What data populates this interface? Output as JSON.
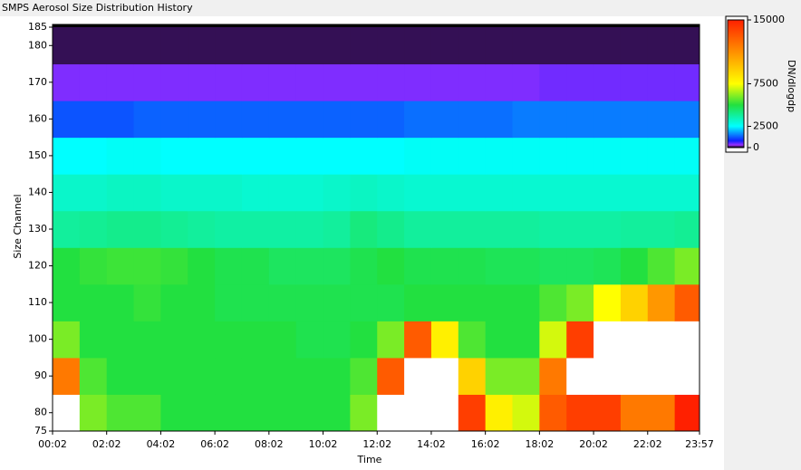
{
  "chart_data": {
    "type": "heatmap",
    "title": "SMPS Aerosol Size Distribution History",
    "x_label": "Time",
    "y_label": "Size Channel",
    "colorbar_label": "DN/dlogdp",
    "x_bins": [
      2,
      62,
      122,
      182,
      242,
      302,
      362,
      422,
      482,
      542,
      602,
      662,
      722,
      782,
      842,
      902,
      962,
      1022,
      1082,
      1142,
      1202,
      1262,
      1322,
      1382,
      1437
    ],
    "y_bins": [
      75,
      85,
      95,
      105,
      115,
      125,
      135,
      145,
      155,
      165,
      175,
      185
    ],
    "z": [
      [
        16000,
        6000,
        5500,
        5500,
        5000,
        5000,
        5000,
        5000,
        5000,
        5000,
        5000,
        6000,
        16000,
        16000,
        16000,
        14000,
        8000,
        7000,
        13000,
        14000,
        14000,
        12000,
        12000,
        15000
      ],
      [
        12000,
        5500,
        5000,
        5000,
        5000,
        5000,
        5000,
        5000,
        5000,
        5000,
        5000,
        5500,
        13000,
        16000,
        16000,
        9000,
        6000,
        6000,
        12000,
        16000,
        16000,
        16000,
        16000,
        16000
      ],
      [
        6000,
        5000,
        5000,
        5000,
        5000,
        5000,
        5000,
        5000,
        5000,
        4800,
        4800,
        5000,
        6000,
        13000,
        8000,
        5500,
        5000,
        5000,
        7000,
        14000,
        16000,
        16000,
        16000,
        16000
      ],
      [
        5000,
        5000,
        5000,
        5200,
        5000,
        5000,
        4800,
        4800,
        4800,
        4800,
        4800,
        4800,
        4800,
        5000,
        5000,
        5000,
        5000,
        5000,
        5500,
        6000,
        7500,
        9000,
        11000,
        13000
      ],
      [
        5000,
        5200,
        5300,
        5300,
        5200,
        5000,
        4800,
        4800,
        4600,
        4600,
        4600,
        4800,
        5000,
        4800,
        4800,
        4800,
        4700,
        4700,
        4600,
        4600,
        4700,
        5000,
        5500,
        6000
      ],
      [
        3800,
        3900,
        4000,
        4000,
        3900,
        3800,
        3700,
        3700,
        3700,
        3700,
        3800,
        4200,
        4000,
        3800,
        3800,
        3800,
        3800,
        3800,
        3700,
        3700,
        3700,
        3800,
        3800,
        3900
      ],
      [
        3200,
        3200,
        3300,
        3300,
        3200,
        3200,
        3200,
        3100,
        3100,
        3100,
        3200,
        3300,
        3200,
        3100,
        3100,
        3100,
        3100,
        3100,
        3100,
        3100,
        3100,
        3100,
        3100,
        3100
      ],
      [
        2500,
        2500,
        2600,
        2600,
        2500,
        2500,
        2500,
        2500,
        2500,
        2500,
        2500,
        2500,
        2500,
        2600,
        2600,
        2600,
        2600,
        2600,
        2600,
        2600,
        2600,
        2600,
        2600,
        2600
      ],
      [
        1200,
        1200,
        1200,
        1300,
        1300,
        1300,
        1300,
        1300,
        1300,
        1300,
        1300,
        1300,
        1300,
        1400,
        1400,
        1400,
        1400,
        1500,
        1500,
        1500,
        1500,
        1500,
        1500,
        1500
      ],
      [
        400,
        400,
        400,
        400,
        400,
        400,
        400,
        400,
        400,
        400,
        400,
        400,
        400,
        400,
        400,
        400,
        400,
        400,
        450,
        450,
        450,
        450,
        450,
        450
      ],
      [
        100,
        100,
        100,
        100,
        100,
        100,
        100,
        100,
        100,
        100,
        100,
        100,
        100,
        100,
        100,
        100,
        100,
        100,
        100,
        100,
        100,
        100,
        100,
        100
      ]
    ],
    "xlim": [
      2,
      1437
    ],
    "ylim": [
      75,
      185
    ],
    "xticks": [
      {
        "value": 2,
        "label": "00:02"
      },
      {
        "value": 122,
        "label": "02:02"
      },
      {
        "value": 242,
        "label": "04:02"
      },
      {
        "value": 362,
        "label": "06:02"
      },
      {
        "value": 482,
        "label": "08:02"
      },
      {
        "value": 602,
        "label": "10:02"
      },
      {
        "value": 722,
        "label": "12:02"
      },
      {
        "value": 842,
        "label": "14:02"
      },
      {
        "value": 962,
        "label": "16:02"
      },
      {
        "value": 1082,
        "label": "18:02"
      },
      {
        "value": 1202,
        "label": "20:02"
      },
      {
        "value": 1322,
        "label": "22:02"
      },
      {
        "value": 1437,
        "label": "23:57"
      }
    ],
    "yticks": [
      75,
      80,
      90,
      100,
      110,
      120,
      130,
      140,
      150,
      160,
      170,
      180,
      185
    ],
    "zlim": [
      0,
      15000
    ],
    "zticks": [
      0,
      2500,
      7500,
      15000
    ],
    "colorscale": [
      [
        0,
        "#000000"
      ],
      [
        300,
        "#9b30ff"
      ],
      [
        800,
        "#1020ff"
      ],
      [
        2500,
        "#00ffff"
      ],
      [
        5000,
        "#22e040"
      ],
      [
        7500,
        "#ffff00"
      ],
      [
        15000,
        "#ff2000"
      ]
    ],
    "over_color": "#ffffff"
  }
}
